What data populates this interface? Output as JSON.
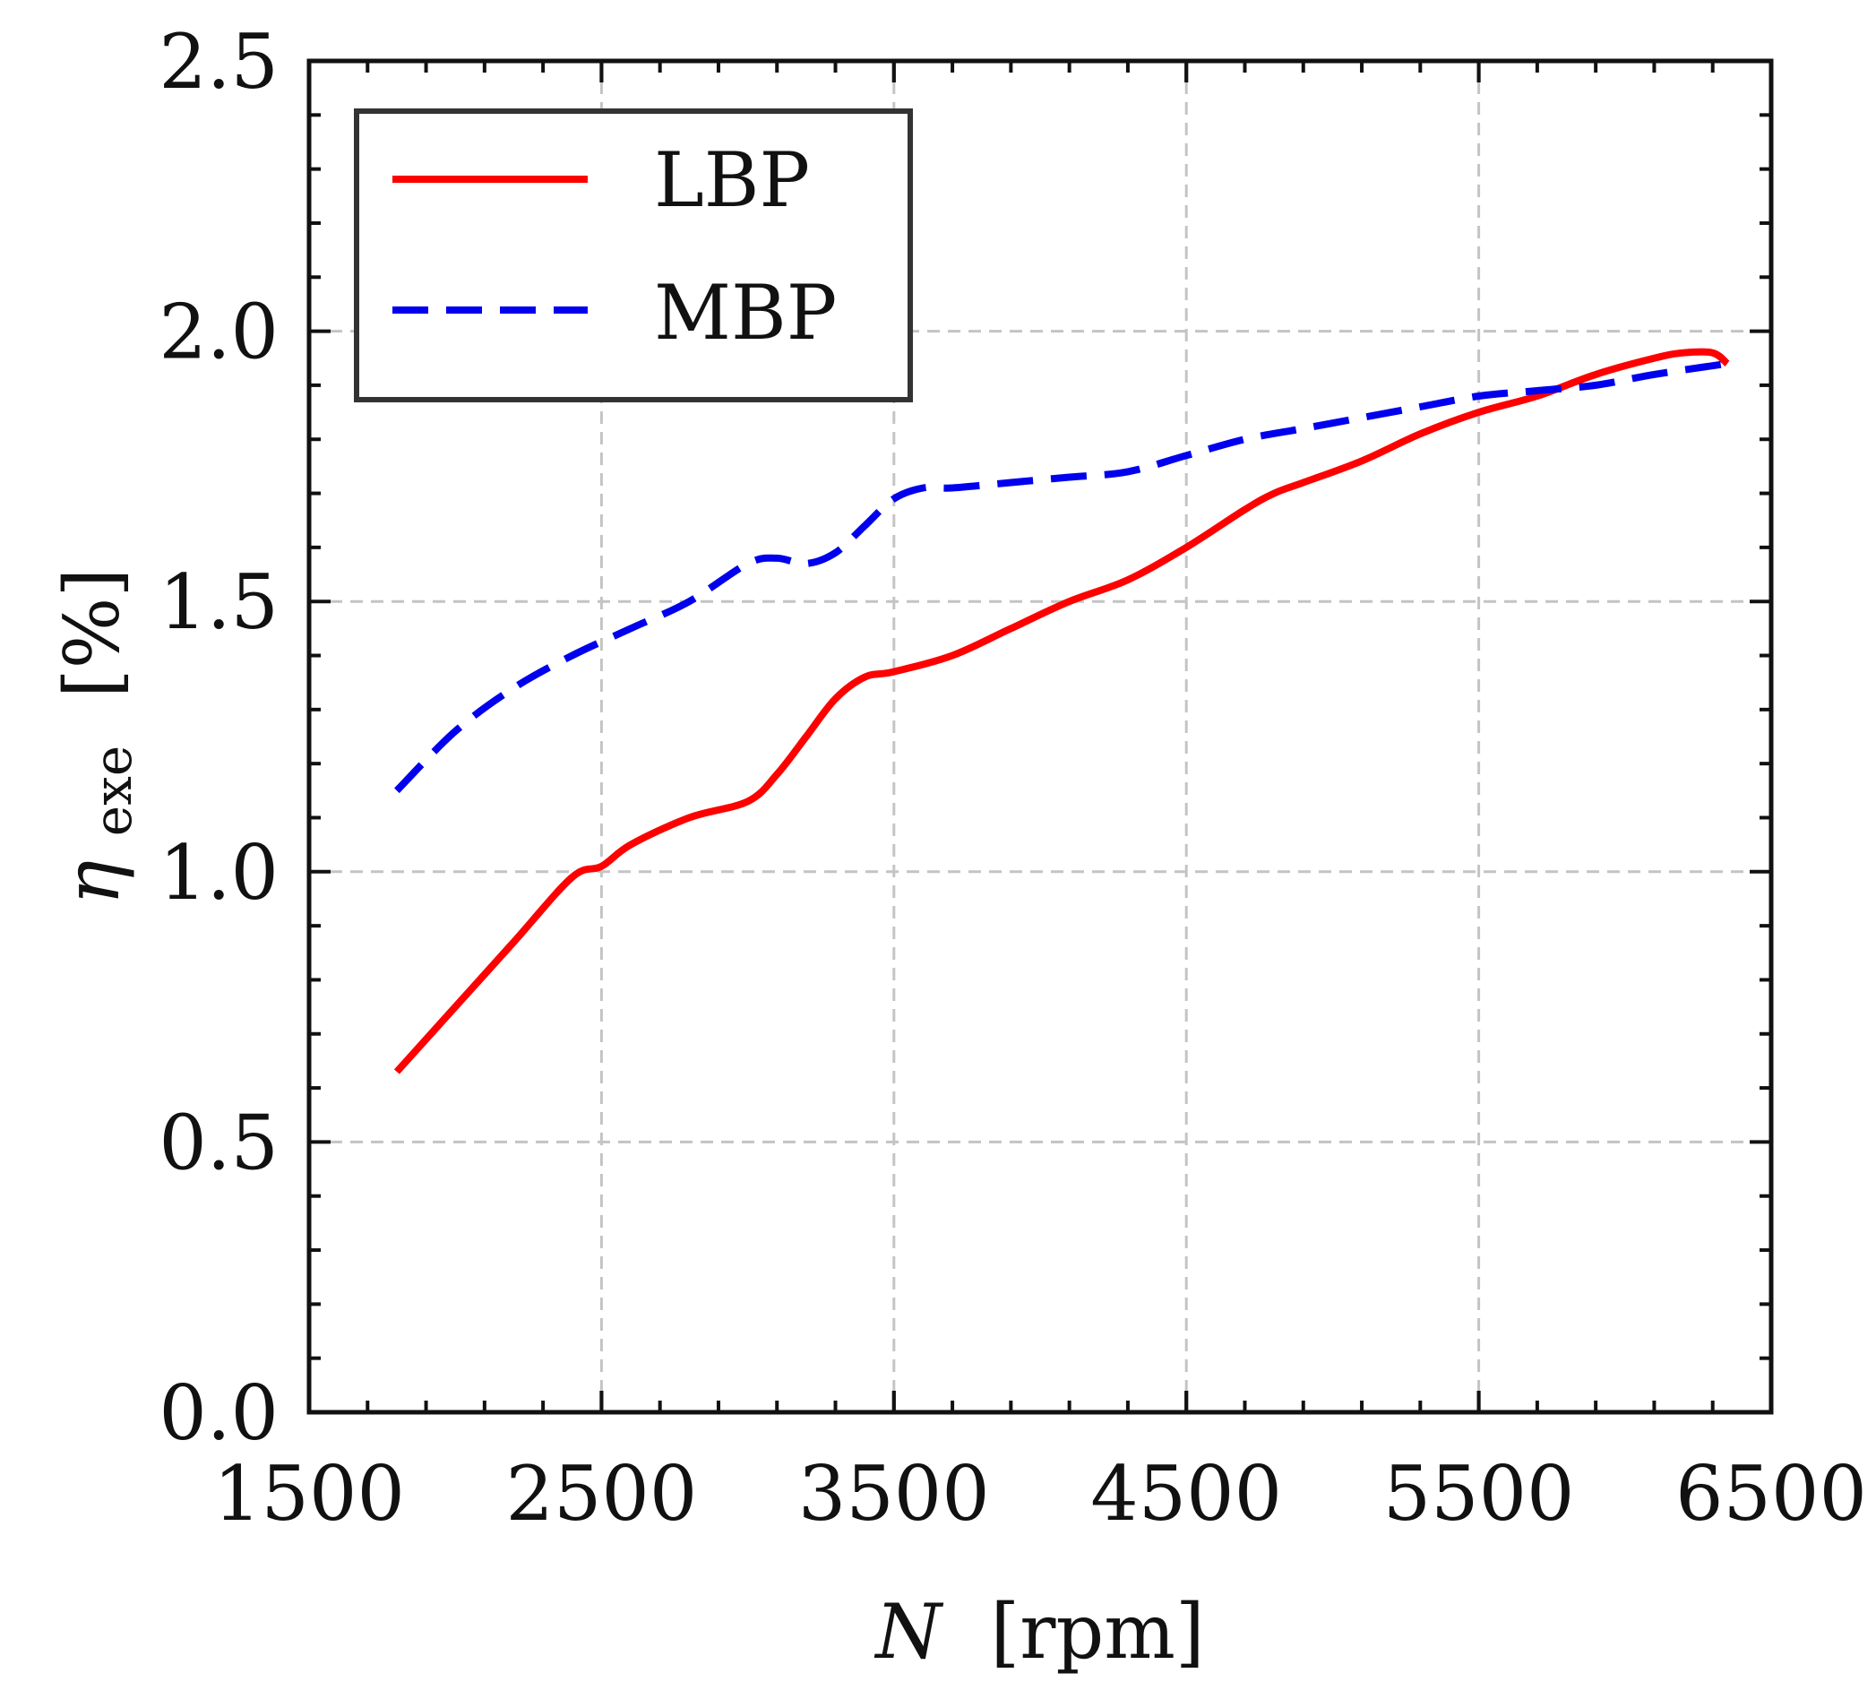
{
  "chart_data": {
    "type": "line",
    "title": "",
    "xlabel_var": "N",
    "xlabel_unit": "[rpm]",
    "ylabel_var": "η",
    "ylabel_sub": "exe",
    "ylabel_unit": "[%]",
    "xlim": [
      1500,
      6500
    ],
    "ylim": [
      0.0,
      2.5
    ],
    "x_ticks": [
      1500,
      2500,
      3500,
      4500,
      5500,
      6500
    ],
    "x_tick_labels": [
      "1500",
      "2500",
      "3500",
      "4500",
      "5500",
      "6500"
    ],
    "x_minor_step": 200,
    "y_ticks": [
      0.0,
      0.5,
      1.0,
      1.5,
      2.0,
      2.5
    ],
    "y_tick_labels": [
      "0.0",
      "0.5",
      "1.0",
      "1.5",
      "2.0",
      "2.5"
    ],
    "y_minor_step": 0.1,
    "grid": true,
    "legend_position": "top-left",
    "series": [
      {
        "name": "LBP",
        "color": "#ff0000",
        "style": "solid",
        "x": [
          1800,
          2000,
          2200,
          2400,
          2500,
          2600,
          2800,
          3000,
          3100,
          3200,
          3300,
          3400,
          3500,
          3700,
          3900,
          4100,
          4300,
          4500,
          4700,
          4800,
          4900,
          5100,
          5300,
          5500,
          5700,
          5900,
          6100,
          6200,
          6300,
          6350
        ],
        "y": [
          0.63,
          0.75,
          0.87,
          0.99,
          1.01,
          1.05,
          1.1,
          1.13,
          1.18,
          1.25,
          1.32,
          1.36,
          1.37,
          1.4,
          1.45,
          1.5,
          1.54,
          1.6,
          1.67,
          1.7,
          1.72,
          1.76,
          1.81,
          1.85,
          1.88,
          1.92,
          1.95,
          1.96,
          1.96,
          1.94
        ]
      },
      {
        "name": "MBP",
        "color": "#0000ee",
        "style": "dashed",
        "x": [
          1800,
          2000,
          2200,
          2400,
          2600,
          2800,
          3000,
          3100,
          3200,
          3300,
          3400,
          3500,
          3600,
          3700,
          3900,
          4100,
          4300,
          4500,
          4700,
          4900,
          5100,
          5300,
          5500,
          5700,
          5900,
          6100,
          6350
        ],
        "y": [
          1.15,
          1.26,
          1.34,
          1.4,
          1.45,
          1.5,
          1.57,
          1.58,
          1.57,
          1.59,
          1.64,
          1.69,
          1.71,
          1.71,
          1.72,
          1.73,
          1.74,
          1.77,
          1.8,
          1.82,
          1.84,
          1.86,
          1.88,
          1.89,
          1.9,
          1.92,
          1.94
        ]
      }
    ]
  }
}
